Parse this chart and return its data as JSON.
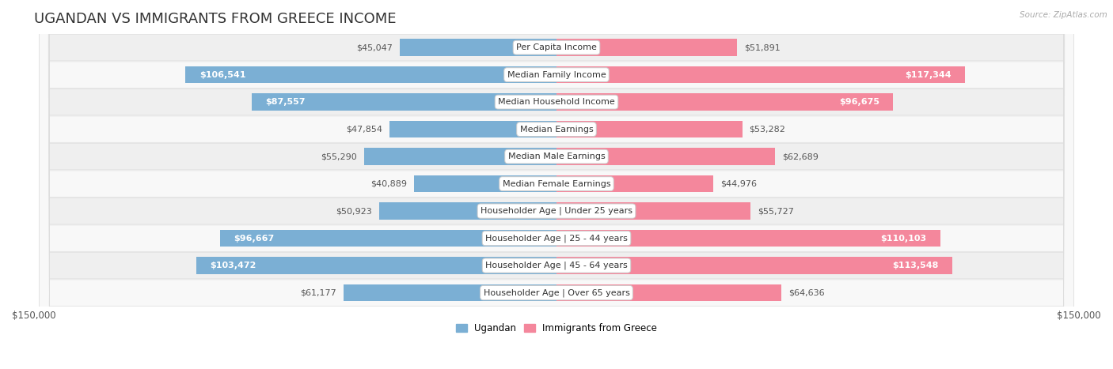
{
  "title": "UGANDAN VS IMMIGRANTS FROM GREECE INCOME",
  "source": "Source: ZipAtlas.com",
  "categories": [
    "Per Capita Income",
    "Median Family Income",
    "Median Household Income",
    "Median Earnings",
    "Median Male Earnings",
    "Median Female Earnings",
    "Householder Age | Under 25 years",
    "Householder Age | 25 - 44 years",
    "Householder Age | 45 - 64 years",
    "Householder Age | Over 65 years"
  ],
  "ugandan_values": [
    45047,
    106541,
    87557,
    47854,
    55290,
    40889,
    50923,
    96667,
    103472,
    61177
  ],
  "greece_values": [
    51891,
    117344,
    96675,
    53282,
    62689,
    44976,
    55727,
    110103,
    113548,
    64636
  ],
  "ugandan_labels": [
    "$45,047",
    "$106,541",
    "$87,557",
    "$47,854",
    "$55,290",
    "$40,889",
    "$50,923",
    "$96,667",
    "$103,472",
    "$61,177"
  ],
  "greece_labels": [
    "$51,891",
    "$117,344",
    "$96,675",
    "$53,282",
    "$62,689",
    "$44,976",
    "$55,727",
    "$110,103",
    "$113,548",
    "$64,636"
  ],
  "ugandan_color": "#7bafd4",
  "greece_color": "#f4879c",
  "high_threshold": 70000,
  "max_value": 150000,
  "bar_height": 0.62,
  "row_bg_color_even": "#efefef",
  "row_bg_color_odd": "#f8f8f8",
  "legend_ugandan": "Ugandan",
  "legend_greece": "Immigrants from Greece",
  "xlabel_left": "$150,000",
  "xlabel_right": "$150,000",
  "title_fontsize": 13,
  "label_fontsize": 8,
  "category_fontsize": 8,
  "axis_fontsize": 8.5
}
